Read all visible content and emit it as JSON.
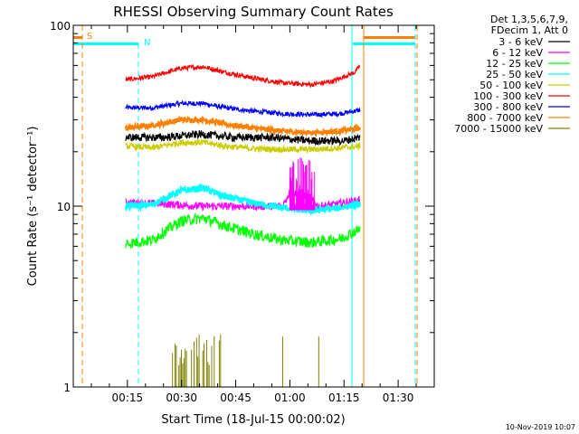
{
  "chart_data": {
    "type": "line",
    "title": "RHESSI Observing Summary Count Rates",
    "xlabel": "Start Time (18-Jul-15 00:00:02)",
    "ylabel": "Count Rate (s⁻¹ detector⁻¹)",
    "yscale": "log",
    "ylim": [
      1,
      100
    ],
    "xlim_minutes": [
      0,
      100
    ],
    "x_tick_labels": [
      "00:15",
      "00:30",
      "00:45",
      "01:00",
      "01:15",
      "01:30"
    ],
    "y_tick_labels": [
      "1",
      "10",
      "100"
    ],
    "y_tick_values": [
      1,
      10,
      100
    ],
    "legend_header": [
      "Det 1,3,5,6,7,9,",
      "FDecim 1, Att 0"
    ],
    "footer_date": "10-Nov-2019 10:07",
    "flag_labels": {
      "saa": "S",
      "night": "N"
    },
    "series": [
      {
        "name": "3 - 6 keV",
        "color": "#000000",
        "t_start": 14.5,
        "t_end": 79.5,
        "points": [
          [
            14.5,
            24
          ],
          [
            25,
            24
          ],
          [
            35,
            25
          ],
          [
            45,
            24
          ],
          [
            55,
            24
          ],
          [
            65,
            23
          ],
          [
            75,
            23
          ],
          [
            79.5,
            24
          ]
        ],
        "noise": 0.05
      },
      {
        "name": "6 - 12 keV",
        "color": "#ff00ff",
        "t_start": 14.5,
        "t_end": 79.5,
        "points": [
          [
            14.5,
            10.5
          ],
          [
            25,
            10.3
          ],
          [
            35,
            10
          ],
          [
            45,
            10
          ],
          [
            52,
            10
          ],
          [
            58,
            10
          ],
          [
            60,
            12
          ],
          [
            64,
            11.5
          ],
          [
            68,
            10
          ],
          [
            72,
            10.2
          ],
          [
            79.5,
            10.8
          ]
        ],
        "noise": 0.05
      },
      {
        "name": "12 - 25 keV",
        "color": "#00ff00",
        "t_start": 14.5,
        "t_end": 79.5,
        "points": [
          [
            14.5,
            6.2
          ],
          [
            22,
            6.5
          ],
          [
            30,
            8.3
          ],
          [
            36,
            8.6
          ],
          [
            42,
            7.8
          ],
          [
            50,
            7
          ],
          [
            58,
            6.5
          ],
          [
            66,
            6.3
          ],
          [
            74,
            6.6
          ],
          [
            79.5,
            7.5
          ]
        ],
        "noise": 0.07
      },
      {
        "name": "25 - 50 keV",
        "color": "#00ffff",
        "t_start": 14.5,
        "t_end": 79.5,
        "points": [
          [
            14.5,
            10
          ],
          [
            22,
            10.2
          ],
          [
            30,
            12.2
          ],
          [
            36,
            12.6
          ],
          [
            42,
            11.3
          ],
          [
            50,
            10.4
          ],
          [
            58,
            9.8
          ],
          [
            66,
            9.4
          ],
          [
            74,
            9.8
          ],
          [
            79.5,
            10.3
          ]
        ],
        "noise": 0.04
      },
      {
        "name": "50 - 100 keV",
        "color": "#cccc00",
        "t_start": 14.5,
        "t_end": 79.5,
        "points": [
          [
            14.5,
            21.5
          ],
          [
            22,
            21
          ],
          [
            30,
            22.5
          ],
          [
            36,
            22.5
          ],
          [
            42,
            21.5
          ],
          [
            50,
            20.8
          ],
          [
            58,
            20.6
          ],
          [
            66,
            20.6
          ],
          [
            74,
            21
          ],
          [
            79.5,
            21.5
          ]
        ],
        "noise": 0.04
      },
      {
        "name": "100 - 300 keV",
        "color": "#ff0000",
        "t_start": 14.5,
        "t_end": 79.5,
        "points": [
          [
            14.5,
            50
          ],
          [
            22,
            52
          ],
          [
            30,
            58
          ],
          [
            36,
            59
          ],
          [
            42,
            55
          ],
          [
            50,
            51
          ],
          [
            58,
            48
          ],
          [
            66,
            47
          ],
          [
            72,
            49
          ],
          [
            78,
            55
          ],
          [
            79.5,
            60
          ]
        ],
        "noise": 0.03
      },
      {
        "name": "300 - 800 keV",
        "color": "#0000ff",
        "t_start": 14.5,
        "t_end": 79.5,
        "points": [
          [
            14.5,
            35
          ],
          [
            22,
            35
          ],
          [
            30,
            37
          ],
          [
            36,
            37
          ],
          [
            42,
            35
          ],
          [
            50,
            33.5
          ],
          [
            58,
            32.5
          ],
          [
            66,
            32
          ],
          [
            74,
            32.5
          ],
          [
            79.5,
            34
          ]
        ],
        "noise": 0.03
      },
      {
        "name": "800 - 7000 keV",
        "color": "#ff8000",
        "t_start": 14.5,
        "t_end": 79.5,
        "points": [
          [
            14.5,
            27
          ],
          [
            22,
            28
          ],
          [
            30,
            30
          ],
          [
            36,
            30
          ],
          [
            42,
            28.5
          ],
          [
            50,
            27
          ],
          [
            58,
            26
          ],
          [
            66,
            25.5
          ],
          [
            74,
            26
          ],
          [
            79.5,
            27
          ]
        ],
        "noise": 0.03
      },
      {
        "name": "7000 - 15000 keV",
        "color": "#808000",
        "t_start": 14.5,
        "t_end": 79.5,
        "points": [],
        "noise": 0
      }
    ]
  }
}
